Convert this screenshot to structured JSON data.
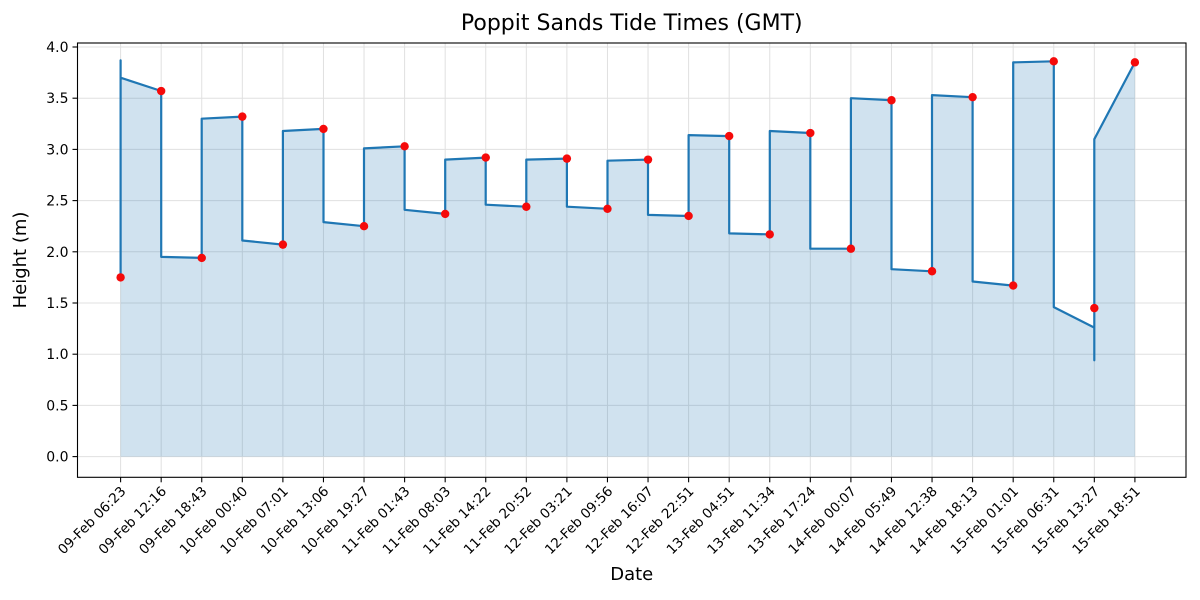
{
  "chart_data": {
    "type": "line",
    "title": "Poppit Sands Tide Times (GMT)",
    "xlabel": "Date",
    "ylabel": "Height (m)",
    "legend": false,
    "grid": true,
    "ylim": [
      -0.2,
      4.04
    ],
    "y_ticks": [
      "0.0",
      "0.5",
      "1.0",
      "1.5",
      "2.0",
      "2.5",
      "3.0",
      "3.5",
      "4.0"
    ],
    "y_tick_values": [
      0,
      0.5,
      1,
      1.5,
      2,
      2.5,
      3,
      3.5,
      4
    ],
    "categories": [
      "09-Feb 06:23",
      "09-Feb 12:16",
      "09-Feb 18:43",
      "10-Feb 00:40",
      "10-Feb 07:01",
      "10-Feb 13:06",
      "10-Feb 19:27",
      "11-Feb 01:43",
      "11-Feb 08:03",
      "11-Feb 14:22",
      "11-Feb 20:52",
      "12-Feb 03:21",
      "12-Feb 09:56",
      "12-Feb 16:07",
      "12-Feb 22:51",
      "13-Feb 04:51",
      "13-Feb 11:34",
      "13-Feb 17:24",
      "14-Feb 00:07",
      "14-Feb 05:49",
      "14-Feb 12:38",
      "14-Feb 18:13",
      "15-Feb 01:01",
      "15-Feb 06:31",
      "15-Feb 13:27",
      "15-Feb 18:51"
    ],
    "values": [
      1.75,
      3.57,
      1.94,
      3.32,
      2.07,
      3.2,
      2.25,
      3.03,
      2.37,
      2.92,
      2.44,
      2.91,
      2.42,
      2.9,
      2.35,
      3.13,
      2.17,
      3.16,
      2.03,
      3.48,
      1.81,
      3.51,
      1.67,
      3.86,
      1.45,
      3.85
    ],
    "line_path": [
      [
        0,
        1.75
      ],
      [
        0,
        3.87
      ],
      [
        0,
        3.7
      ],
      [
        1,
        3.57
      ],
      [
        1,
        1.95
      ],
      [
        2,
        1.94
      ],
      [
        2,
        3.3
      ],
      [
        3,
        3.32
      ],
      [
        3,
        2.11
      ],
      [
        4,
        2.07
      ],
      [
        4,
        3.18
      ],
      [
        5,
        3.2
      ],
      [
        5,
        2.29
      ],
      [
        6,
        2.25
      ],
      [
        6,
        3.01
      ],
      [
        7,
        3.03
      ],
      [
        7,
        2.41
      ],
      [
        8,
        2.37
      ],
      [
        8,
        2.9
      ],
      [
        9,
        2.92
      ],
      [
        9,
        2.46
      ],
      [
        10,
        2.44
      ],
      [
        10,
        2.9
      ],
      [
        11,
        2.91
      ],
      [
        11,
        2.44
      ],
      [
        12,
        2.42
      ],
      [
        12,
        2.89
      ],
      [
        13,
        2.9
      ],
      [
        13,
        2.36
      ],
      [
        14,
        2.35
      ],
      [
        14,
        3.14
      ],
      [
        15,
        3.13
      ],
      [
        15,
        2.18
      ],
      [
        16,
        2.17
      ],
      [
        16,
        3.18
      ],
      [
        17,
        3.16
      ],
      [
        17,
        2.03
      ],
      [
        18,
        2.03
      ],
      [
        18,
        3.5
      ],
      [
        19,
        3.48
      ],
      [
        19,
        1.83
      ],
      [
        20,
        1.81
      ],
      [
        20,
        3.53
      ],
      [
        21,
        3.51
      ],
      [
        21,
        1.71
      ],
      [
        22,
        1.67
      ],
      [
        22,
        3.85
      ],
      [
        23,
        3.86
      ],
      [
        23,
        1.46
      ],
      [
        24,
        1.26
      ],
      [
        24,
        0.94
      ],
      [
        24,
        3.1
      ],
      [
        25,
        3.85
      ]
    ],
    "fill_baseline": 0,
    "colors": {
      "line": "#1f77b4",
      "fill": "#1f77b4",
      "fill_opacity": 0.21,
      "marker": "#f50a0a",
      "grid": "#e0e0e0",
      "spine": "#000000"
    }
  }
}
